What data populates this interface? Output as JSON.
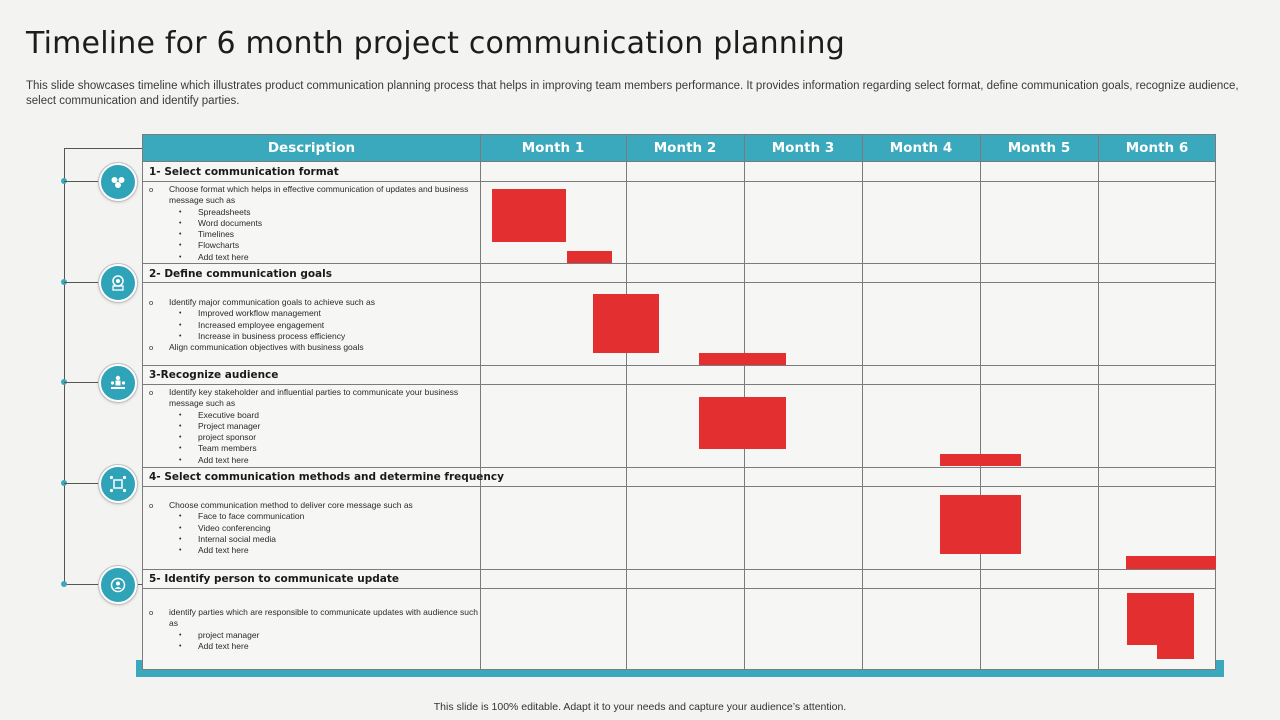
{
  "title": "Timeline for 6 month project communication planning",
  "subtitle": "This slide showcases timeline which illustrates product communication planning process that helps in improving team members performance. It provides information regarding select format, define communication goals, recognize audience, select communication and identify parties.",
  "footer": "This slide is 100% editable.  Adapt it to your needs and capture your audience’s attention.",
  "table": {
    "headers": [
      "Description",
      "Month 1",
      "Month 2",
      "Month 3",
      "Month 4",
      "Month 5",
      "Month 6"
    ]
  },
  "sections": [
    {
      "title": "1- Select  communication format",
      "icon": "group-icon",
      "items": [
        {
          "level": 1,
          "text": "Choose  format which helps in effective communication of updates and business message such as"
        },
        {
          "level": 2,
          "text": "Spreadsheets"
        },
        {
          "level": 2,
          "text": "Word documents"
        },
        {
          "level": 2,
          "text": "Timelines"
        },
        {
          "level": 2,
          "text": "Flowcharts"
        },
        {
          "level": 2,
          "text": "Add text here"
        }
      ]
    },
    {
      "title": "2- Define communication goals",
      "icon": "target-icon",
      "items": [
        {
          "level": 1,
          "text": "Identify major communication goals to achieve such as"
        },
        {
          "level": 2,
          "text": "Improved workflow management"
        },
        {
          "level": 2,
          "text": "Increased employee engagement"
        },
        {
          "level": 2,
          "text": "Increase in business process efficiency"
        },
        {
          "level": 1,
          "text": "Align communication objectives with business goals"
        }
      ]
    },
    {
      "title": "3-Recognize audience",
      "icon": "audience-icon",
      "items": [
        {
          "level": 1,
          "text": "Identify key stakeholder and influential parties to communicate your business message such as"
        },
        {
          "level": 2,
          "text": "Executive board"
        },
        {
          "level": 2,
          "text": "Project manager"
        },
        {
          "level": 2,
          "text": "project sponsor"
        },
        {
          "level": 2,
          "text": "Team members"
        },
        {
          "level": 2,
          "text": "Add text here"
        }
      ]
    },
    {
      "title": "4- Select  communication methods and determine frequency",
      "icon": "network-icon",
      "items": [
        {
          "level": 1,
          "text": "Choose communication method to deliver core message such as"
        },
        {
          "level": 2,
          "text": "Face to face communication"
        },
        {
          "level": 2,
          "text": "Video conferencing"
        },
        {
          "level": 2,
          "text": "Internal social media"
        },
        {
          "level": 2,
          "text": "Add text here"
        }
      ]
    },
    {
      "title": "5- Identify person to communicate update",
      "icon": "person-target-icon",
      "items": [
        {
          "level": 1,
          "text": "identify parties which are responsible to communicate updates with audience such as"
        },
        {
          "level": 2,
          "text": "project manager"
        },
        {
          "level": 2,
          "text": "Add text here"
        }
      ]
    }
  ],
  "colors": {
    "accent": "#3aa9bd",
    "bar": "#e32f2f"
  }
}
